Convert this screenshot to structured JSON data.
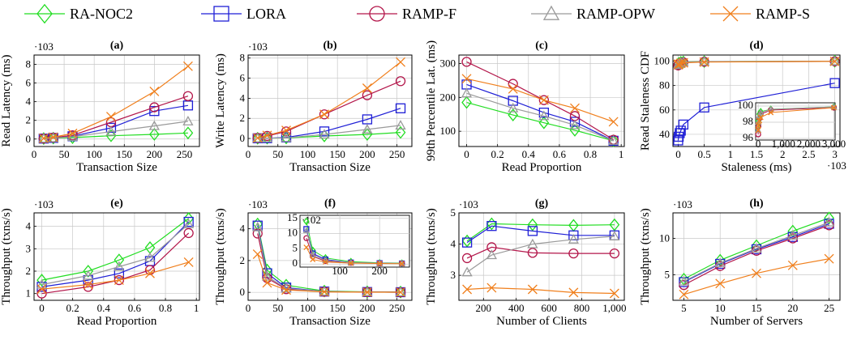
{
  "series_styles": [
    {
      "name": "RA-NOC2",
      "color": "#22dd22",
      "marker": "diamond"
    },
    {
      "name": "LORA",
      "color": "#1f1fd6",
      "marker": "square"
    },
    {
      "name": "RAMP-F",
      "color": "#b3164a",
      "marker": "circle"
    },
    {
      "name": "RAMP-OPW",
      "color": "#9a9a9a",
      "marker": "triangle"
    },
    {
      "name": "RAMP-S",
      "color": "#f07f1c",
      "marker": "x"
    }
  ],
  "chart_data": [
    {
      "type": "line",
      "title": "(a)",
      "xlabel": "Transaction Size",
      "ylabel": "Read Latency (ms)",
      "yexp": "·10^3",
      "grid": true,
      "xlim": [
        0,
        275
      ],
      "ylim": [
        -0.8,
        9
      ],
      "xticks": [
        0,
        50,
        100,
        150,
        200,
        250
      ],
      "yticks": [
        0,
        2,
        4,
        6,
        8
      ],
      "x": [
        16,
        32,
        64,
        128,
        200,
        256
      ],
      "series": [
        {
          "name": "RA-NOC2",
          "values": [
            0.05,
            0.1,
            0.15,
            0.35,
            0.5,
            0.65
          ]
        },
        {
          "name": "LORA",
          "values": [
            0.05,
            0.12,
            0.3,
            1.2,
            3.0,
            3.6
          ]
        },
        {
          "name": "RAMP-F",
          "values": [
            0.05,
            0.15,
            0.4,
            1.8,
            3.4,
            4.6
          ]
        },
        {
          "name": "RAMP-OPW",
          "values": [
            0.05,
            0.1,
            0.25,
            0.8,
            1.4,
            1.9
          ]
        },
        {
          "name": "RAMP-S",
          "values": [
            0.08,
            0.2,
            0.6,
            2.4,
            5.1,
            7.8
          ]
        }
      ]
    },
    {
      "type": "line",
      "title": "(b)",
      "xlabel": "Transaction Size",
      "ylabel": "Write Latency (ms)",
      "yexp": "·10^3",
      "grid": true,
      "xlim": [
        0,
        275
      ],
      "ylim": [
        -0.8,
        8.3
      ],
      "xticks": [
        0,
        50,
        100,
        150,
        200,
        250
      ],
      "yticks": [
        0,
        2,
        4,
        6,
        8
      ],
      "x": [
        16,
        32,
        64,
        128,
        200,
        256
      ],
      "series": [
        {
          "name": "RA-NOC2",
          "values": [
            0.02,
            0.03,
            0.05,
            0.25,
            0.4,
            0.6
          ]
        },
        {
          "name": "LORA",
          "values": [
            0.02,
            0.03,
            0.1,
            0.7,
            1.9,
            3.0
          ]
        },
        {
          "name": "RAMP-F",
          "values": [
            0.05,
            0.25,
            0.7,
            2.4,
            4.3,
            5.7
          ]
        },
        {
          "name": "RAMP-OPW",
          "values": [
            0.02,
            0.03,
            0.06,
            0.4,
            0.9,
            1.3
          ]
        },
        {
          "name": "RAMP-S",
          "values": [
            0.05,
            0.3,
            0.8,
            2.4,
            5.0,
            7.6
          ]
        }
      ]
    },
    {
      "type": "line",
      "title": "(c)",
      "xlabel": "Read Proportion",
      "ylabel": "99th Percentile Lat. (ms)",
      "grid": true,
      "xlim": [
        -0.05,
        1.02
      ],
      "ylim": [
        55,
        325
      ],
      "xticks": [
        0,
        0.2,
        0.4,
        0.6,
        0.8,
        1
      ],
      "yticks": [
        100,
        200,
        300
      ],
      "x": [
        0,
        0.3,
        0.5,
        0.7,
        0.95
      ],
      "series": [
        {
          "name": "RA-NOC2",
          "values": [
            185,
            148,
            125,
            103,
            72
          ]
        },
        {
          "name": "LORA",
          "values": [
            238,
            190,
            155,
            128,
            72
          ]
        },
        {
          "name": "RAMP-F",
          "values": [
            305,
            240,
            192,
            145,
            75
          ]
        },
        {
          "name": "RAMP-OPW",
          "values": [
            212,
            168,
            145,
            118,
            72
          ]
        },
        {
          "name": "RAMP-S",
          "values": [
            255,
            225,
            192,
            168,
            128
          ]
        }
      ]
    },
    {
      "type": "line",
      "title": "(d)",
      "xlabel": "Staleness (ms)",
      "ylabel": "Read Staleness CDF",
      "xexp": "·10^3",
      "grid": true,
      "xlim": [
        -0.1,
        3.1
      ],
      "ylim": [
        30,
        105
      ],
      "xticks": [
        0,
        0.5,
        1,
        1.5,
        2,
        2.5,
        3
      ],
      "xticklabels": [
        "0",
        "0.5",
        "1",
        "1.5",
        "2",
        "2.5",
        "3"
      ],
      "yticks": [
        40,
        60,
        80,
        100
      ],
      "series": [
        {
          "name": "RA-NOC2",
          "x": [
            0,
            0.01,
            0.05,
            0.1,
            0.5,
            3.0
          ],
          "values": [
            97.5,
            98.2,
            99.0,
            99.3,
            99.6,
            99.9
          ]
        },
        {
          "name": "LORA",
          "x": [
            0,
            0.01,
            0.03,
            0.05,
            0.1,
            0.5,
            3.0
          ],
          "values": [
            35,
            38,
            41,
            43,
            48,
            62,
            82
          ]
        },
        {
          "name": "RAMP-F",
          "x": [
            0,
            0.01,
            0.05,
            0.1,
            0.5,
            3.0
          ],
          "values": [
            96.5,
            97.5,
            98.5,
            99.0,
            99.5,
            99.8
          ]
        },
        {
          "name": "RAMP-OPW",
          "x": [
            0,
            0.01,
            0.05,
            0.1,
            0.5,
            3.0
          ],
          "values": [
            97.0,
            98.0,
            98.8,
            99.2,
            99.6,
            99.9
          ]
        },
        {
          "name": "RAMP-S",
          "x": [
            0,
            0.01,
            0.05,
            0.1,
            0.5,
            3.0
          ],
          "values": [
            97.0,
            97.6,
            98.2,
            98.6,
            99.2,
            99.8
          ]
        }
      ],
      "inset": {
        "xlim": [
          -100,
          3050
        ],
        "ylim": [
          95.8,
          100.4
        ],
        "xticks": [
          0,
          1000,
          2000,
          3000
        ],
        "xticklabels": [
          "0",
          "1,000",
          "2,000",
          "3,000"
        ],
        "yticks": [
          96,
          98,
          100
        ],
        "series": [
          {
            "name": "RA-NOC2",
            "x": [
              0,
              10,
              50,
              100,
              500,
              3000
            ],
            "values": [
              97.5,
              98.2,
              99.0,
              99.3,
              99.6,
              99.9
            ]
          },
          {
            "name": "RAMP-F",
            "x": [
              0,
              10,
              50,
              100,
              500,
              3000
            ],
            "values": [
              96.5,
              97.5,
              98.5,
              99.0,
              99.5,
              99.8
            ]
          },
          {
            "name": "RAMP-OPW",
            "x": [
              0,
              10,
              50,
              100,
              500,
              3000
            ],
            "values": [
              97.0,
              98.0,
              98.8,
              99.2,
              99.6,
              99.9
            ]
          },
          {
            "name": "RAMP-S",
            "x": [
              0,
              10,
              50,
              100,
              500,
              3000
            ],
            "values": [
              97.0,
              97.6,
              98.2,
              98.6,
              99.2,
              99.8
            ]
          }
        ]
      }
    },
    {
      "type": "line",
      "title": "(e)",
      "xlabel": "Read Proportion",
      "ylabel": "Throughput (txns/s)",
      "yexp": "·10^3",
      "grid": true,
      "xlim": [
        -0.05,
        1.02
      ],
      "ylim": [
        0.7,
        4.6
      ],
      "xticks": [
        0,
        0.2,
        0.4,
        0.6,
        0.8,
        1
      ],
      "yticks": [
        1,
        2,
        3,
        4
      ],
      "x": [
        0,
        0.3,
        0.5,
        0.7,
        0.95
      ],
      "series": [
        {
          "name": "RA-NOC2",
          "values": [
            1.6,
            2.0,
            2.5,
            3.05,
            4.35
          ]
        },
        {
          "name": "LORA",
          "values": [
            1.3,
            1.6,
            1.9,
            2.45,
            4.2
          ]
        },
        {
          "name": "RAMP-F",
          "values": [
            1.0,
            1.3,
            1.6,
            2.05,
            3.7
          ]
        },
        {
          "name": "RAMP-OPW",
          "values": [
            1.4,
            1.8,
            2.2,
            2.6,
            4.1
          ]
        },
        {
          "name": "RAMP-S",
          "values": [
            1.2,
            1.4,
            1.6,
            1.9,
            2.4
          ]
        }
      ]
    },
    {
      "type": "line",
      "title": "(f)",
      "xlabel": "Transaction Size",
      "ylabel": "Throughput (txns/s)",
      "yexp": "·10^3",
      "grid": true,
      "xlim": [
        0,
        275
      ],
      "ylim": [
        -0.5,
        5.0
      ],
      "xticks": [
        0,
        50,
        100,
        150,
        200,
        250
      ],
      "yticks": [
        0,
        2,
        4
      ],
      "x": [
        16,
        32,
        64,
        128,
        200,
        256
      ],
      "series": [
        {
          "name": "RA-NOC2",
          "values": [
            4.3,
            1.4,
            0.45,
            0.08,
            0.03,
            0.02
          ]
        },
        {
          "name": "LORA",
          "values": [
            4.2,
            1.2,
            0.3,
            0.05,
            0.02,
            0.01
          ]
        },
        {
          "name": "RAMP-F",
          "values": [
            3.7,
            0.9,
            0.2,
            0.04,
            0.02,
            0.01
          ]
        },
        {
          "name": "RAMP-OPW",
          "values": [
            4.1,
            1.0,
            0.25,
            0.05,
            0.02,
            0.01
          ]
        },
        {
          "name": "RAMP-S",
          "values": [
            2.4,
            0.6,
            0.15,
            0.03,
            0.01,
            0.01
          ]
        }
      ],
      "inset": {
        "yexp": "·10^2",
        "xlim": [
          0,
          275
        ],
        "ylim": [
          -1,
          16
        ],
        "xticks": [
          100,
          200
        ],
        "xticklabels": [
          "100",
          "200"
        ],
        "yticks": [
          0,
          5,
          10,
          15
        ],
        "x": [
          16,
          32,
          64,
          128,
          200,
          256
        ],
        "series": [
          {
            "name": "RA-NOC2",
            "values": [
              14,
              4.5,
              2.0,
              0.8,
              0.4,
              0.3
            ]
          },
          {
            "name": "LORA",
            "values": [
              11.5,
              3.5,
              1.5,
              0.5,
              0.3,
              0.2
            ]
          },
          {
            "name": "RAMP-F",
            "values": [
              8.5,
              2.5,
              1.0,
              0.4,
              0.2,
              0.2
            ]
          },
          {
            "name": "RAMP-OPW",
            "values": [
              11.0,
              3.0,
              1.2,
              0.5,
              0.3,
              0.2
            ]
          },
          {
            "name": "RAMP-S",
            "values": [
              5.5,
              1.5,
              0.7,
              0.3,
              0.2,
              0.1
            ]
          }
        ]
      }
    },
    {
      "type": "line",
      "title": "(g)",
      "xlabel": "Number of Clients",
      "ylabel": "Throughput (txns/s)",
      "yexp": "·10^3",
      "grid": true,
      "xlim": [
        50,
        1060
      ],
      "ylim": [
        2.2,
        5.0
      ],
      "xticks": [
        200,
        400,
        600,
        800,
        1000
      ],
      "xticklabels": [
        "200",
        "400",
        "600",
        "800",
        "1,000"
      ],
      "yticks": [
        3,
        4,
        5
      ],
      "x": [
        100,
        250,
        500,
        750,
        1000
      ],
      "series": [
        {
          "name": "RA-NOC2",
          "values": [
            4.1,
            4.65,
            4.62,
            4.6,
            4.62
          ]
        },
        {
          "name": "LORA",
          "values": [
            4.05,
            4.58,
            4.42,
            4.28,
            4.28
          ]
        },
        {
          "name": "RAMP-F",
          "values": [
            3.55,
            3.9,
            3.72,
            3.7,
            3.7
          ]
        },
        {
          "name": "RAMP-OPW",
          "values": [
            3.1,
            3.65,
            4.0,
            4.15,
            4.25
          ]
        },
        {
          "name": "RAMP-S",
          "values": [
            2.55,
            2.6,
            2.55,
            2.45,
            2.42
          ]
        }
      ]
    },
    {
      "type": "line",
      "title": "(h)",
      "xlabel": "Number of Servers",
      "ylabel": "Throughput (txns/s)",
      "yexp": "·10^3",
      "grid": true,
      "xlim": [
        3.5,
        26.5
      ],
      "ylim": [
        1.5,
        13.5
      ],
      "xticks": [
        5,
        10,
        15,
        20,
        25
      ],
      "yticks": [
        5,
        10
      ],
      "x": [
        5,
        10,
        15,
        20,
        25
      ],
      "series": [
        {
          "name": "RA-NOC2",
          "values": [
            4.4,
            7.0,
            9.0,
            11.0,
            12.8
          ]
        },
        {
          "name": "LORA",
          "values": [
            4.0,
            6.5,
            8.5,
            10.2,
            12.0
          ]
        },
        {
          "name": "RAMP-F",
          "values": [
            3.6,
            6.2,
            8.3,
            10.0,
            11.8
          ]
        },
        {
          "name": "RAMP-OPW",
          "values": [
            4.1,
            6.6,
            8.6,
            10.4,
            12.2
          ]
        },
        {
          "name": "RAMP-S",
          "values": [
            2.3,
            3.8,
            5.2,
            6.3,
            7.2
          ]
        }
      ]
    }
  ]
}
